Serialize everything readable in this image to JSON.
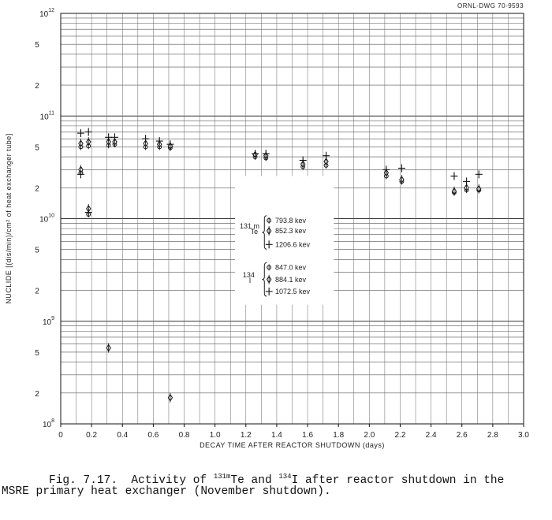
{
  "drawing_id": "ORNL-DWG 70-9593",
  "caption": {
    "line1_pre": "Fig. 7.17.  Activity of ",
    "iso1_mass": "131m",
    "iso1_elem": "Te and ",
    "iso2_mass": "134",
    "iso2_elem": "I after reactor shutdown in the",
    "line2": "MSRE primary heat exchanger (November shutdown)."
  },
  "chart_data": {
    "type": "scatter",
    "xlabel": "DECAY TIME AFTER REACTOR SHUTDOWN (days)",
    "ylabel": "NUCLIDE [(dis/min)/cm² of heat exchanger tube]",
    "xlim": [
      0,
      3.0
    ],
    "ylim": [
      100000000.0,
      1000000000000.0
    ],
    "yscale": "log",
    "x_ticks": [
      "0",
      "0.2",
      "0.4",
      "0.6",
      "0.8",
      "1.0",
      "1.2",
      "1.4",
      "1.6",
      "1.8",
      "2.0",
      "2.2",
      "2.4",
      "2.6",
      "2.8",
      "3.0"
    ],
    "y_tick_labels": {
      "decades": [
        {
          "base": "10",
          "exp": "8"
        },
        {
          "base": "10",
          "exp": "9"
        },
        {
          "base": "10",
          "exp": "10"
        },
        {
          "base": "10",
          "exp": "11"
        },
        {
          "base": "10",
          "exp": "12"
        }
      ],
      "minor": [
        {
          "value": 200000000.0,
          "label": "2"
        },
        {
          "value": 500000000.0,
          "label": "5"
        },
        {
          "value": 2000000000.0,
          "label": "2"
        },
        {
          "value": 5000000000.0,
          "label": "5"
        },
        {
          "value": 20000000000.0,
          "label": "2"
        },
        {
          "value": 50000000000.0,
          "label": "5"
        },
        {
          "value": 200000000000.0,
          "label": "2"
        },
        {
          "value": 500000000000.0,
          "label": "5"
        }
      ]
    },
    "legend": {
      "groups": [
        {
          "label_mass": "131 m",
          "label_elem": "Te",
          "entries": [
            {
              "series": "Te131m-793.8",
              "text": "793.8 kev"
            },
            {
              "series": "Te131m-852.3",
              "text": "852.3 kev"
            },
            {
              "series": "Te131m-1206.6",
              "text": "1206.6 kev"
            }
          ]
        },
        {
          "label_mass": "134",
          "label_elem": "I",
          "entries": [
            {
              "series": "I134-847.0",
              "text": "847.0 kev"
            },
            {
              "series": "I134-884.1",
              "text": "884.1 kev"
            },
            {
              "series": "I134-1072.5",
              "text": "1072.5 kev"
            }
          ]
        }
      ]
    },
    "series": [
      {
        "name": "Te131m-793.8",
        "marker": "circle",
        "points": [
          [
            0.13,
            50000000000.0
          ],
          [
            0.18,
            51000000000.0
          ],
          [
            0.31,
            52000000000.0
          ],
          [
            0.35,
            53000000000.0
          ],
          [
            0.55,
            50000000000.0
          ],
          [
            0.64,
            50000000000.0
          ],
          [
            0.71,
            49000000000.0
          ],
          [
            1.26,
            40000000000.0
          ],
          [
            1.33,
            39000000000.0
          ],
          [
            1.57,
            32000000000.0
          ],
          [
            1.72,
            33000000000.0
          ],
          [
            2.11,
            26000000000.0
          ],
          [
            2.21,
            23000000000.0
          ]
        ]
      },
      {
        "name": "Te131m-852.3",
        "marker": "diamond",
        "points": [
          [
            0.13,
            54000000000.0
          ],
          [
            0.18,
            56000000000.0
          ],
          [
            0.31,
            56000000000.0
          ],
          [
            0.35,
            56000000000.0
          ],
          [
            0.55,
            54000000000.0
          ],
          [
            0.64,
            53000000000.0
          ],
          [
            0.71,
            51000000000.0
          ],
          [
            1.26,
            42000000000.0
          ],
          [
            1.33,
            41000000000.0
          ],
          [
            1.57,
            34000000000.0
          ],
          [
            1.72,
            36000000000.0
          ],
          [
            2.11,
            28000000000.0
          ],
          [
            2.21,
            24000000000.0
          ]
        ]
      },
      {
        "name": "Te131m-1206.6",
        "marker": "cross",
        "points": [
          [
            0.13,
            68000000000.0
          ],
          [
            0.18,
            70000000000.0
          ],
          [
            0.31,
            62000000000.0
          ],
          [
            0.35,
            62000000000.0
          ],
          [
            0.55,
            60000000000.0
          ],
          [
            0.64,
            57000000000.0
          ],
          [
            0.71,
            53000000000.0
          ],
          [
            1.26,
            43000000000.0
          ],
          [
            1.33,
            43000000000.0
          ],
          [
            1.57,
            37000000000.0
          ],
          [
            1.72,
            41000000000.0
          ],
          [
            2.11,
            30000000000.0
          ],
          [
            2.21,
            31000000000.0
          ]
        ]
      },
      {
        "name": "I134-847.0",
        "marker": "circle",
        "points": [
          [
            0.13,
            28000000000.0
          ],
          [
            0.18,
            11000000000.0
          ],
          [
            2.55,
            18000000000.0
          ],
          [
            2.63,
            19000000000.0
          ],
          [
            2.71,
            19000000000.0
          ]
        ]
      },
      {
        "name": "I134-884.1",
        "marker": "diamond",
        "points": [
          [
            0.13,
            30000000000.0
          ],
          [
            0.18,
            12500000000.0
          ],
          [
            0.31,
            550000000.0
          ],
          [
            0.71,
            180000000.0
          ],
          [
            2.55,
            18500000000.0
          ],
          [
            2.63,
            20000000000.0
          ],
          [
            2.71,
            19500000000.0
          ]
        ]
      },
      {
        "name": "I134-1072.5",
        "marker": "cross",
        "points": [
          [
            0.13,
            27000000000.0
          ],
          [
            0.18,
            11500000000.0
          ],
          [
            2.55,
            26000000000.0
          ],
          [
            2.63,
            23000000000.0
          ],
          [
            2.71,
            27000000000.0
          ]
        ]
      }
    ]
  }
}
